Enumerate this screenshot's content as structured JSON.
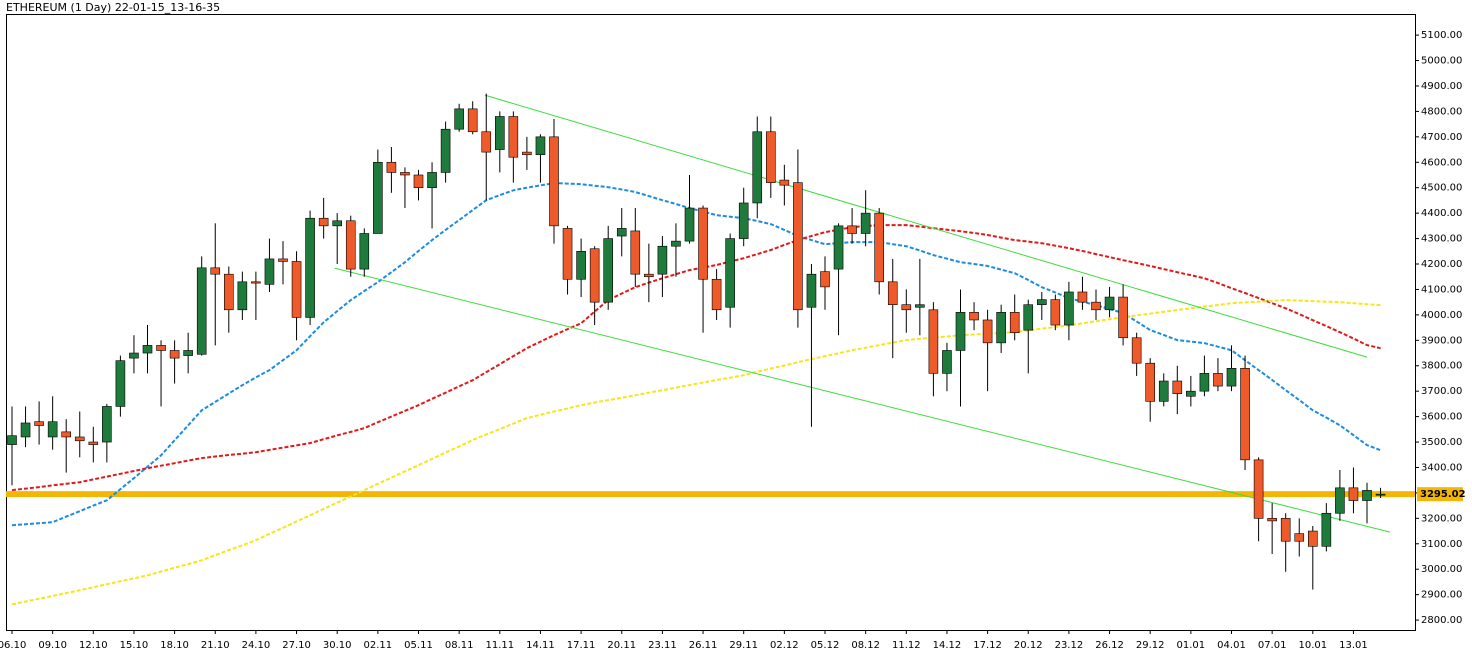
{
  "chart_data": {
    "type": "candlestick",
    "title": "ETHEREUM (1 Day) 22-01-15_13-16-35",
    "categories": [
      "06.10",
      null,
      null,
      "09.10",
      null,
      null,
      "12.10",
      null,
      null,
      "15.10",
      null,
      null,
      "18.10",
      null,
      null,
      "21.10",
      null,
      null,
      "24.10",
      null,
      null,
      "27.10",
      null,
      null,
      "30.10",
      null,
      null,
      "02.11",
      null,
      null,
      "05.11",
      null,
      null,
      "08.11",
      null,
      null,
      "11.11",
      null,
      null,
      "14.11",
      null,
      null,
      "17.11",
      null,
      null,
      "20.11",
      null,
      null,
      "23.11",
      null,
      null,
      "26.11",
      null,
      null,
      "29.11",
      null,
      null,
      "02.12",
      null,
      null,
      "05.12",
      null,
      null,
      "08.12",
      null,
      null,
      "11.12",
      null,
      null,
      "14.12",
      null,
      null,
      "17.12",
      null,
      null,
      "20.12",
      null,
      null,
      "23.12",
      null,
      null,
      "26.12",
      null,
      null,
      "29.12",
      null,
      null,
      "01.01",
      null,
      null,
      "04.01",
      null,
      null,
      "07.01",
      null,
      null,
      "10.01",
      null,
      null,
      "13.01",
      null,
      null
    ],
    "open": [
      3490,
      3520,
      3580,
      3520,
      3540,
      3520,
      3500,
      3500,
      3640,
      3830,
      3850,
      3880,
      3860,
      3840,
      3845,
      4185,
      4160,
      4020,
      4130,
      4120,
      4220,
      4210,
      3990,
      4380,
      4350,
      4370,
      4180,
      4320,
      4600,
      4560,
      4550,
      4500,
      4560,
      4730,
      4810,
      4720,
      4650,
      4780,
      4640,
      4630,
      4700,
      4340,
      4140,
      4260,
      4050,
      4310,
      4330,
      4160,
      4160,
      4270,
      4290,
      4420,
      4140,
      4030,
      4300,
      4440,
      4720,
      4530,
      4520,
      4030,
      4170,
      4180,
      4350,
      4320,
      4400,
      4130,
      4040,
      4030,
      4020,
      3770,
      3860,
      4010,
      3980,
      3890,
      4010,
      3940,
      4040,
      4060,
      3960,
      4090,
      4050,
      4020,
      4070,
      3910,
      3810,
      3660,
      3740,
      3680,
      3700,
      3770,
      3720,
      3790,
      3430,
      3200,
      3200,
      3140,
      3150,
      3090,
      3220,
      3320,
      3270,
      3295
    ],
    "high": [
      3640,
      3640,
      3660,
      3680,
      3590,
      3620,
      3560,
      3650,
      3840,
      3920,
      3960,
      3900,
      3900,
      3930,
      4230,
      4360,
      4190,
      4170,
      4170,
      4300,
      4290,
      4250,
      4410,
      4460,
      4400,
      4390,
      4340,
      4650,
      4660,
      4580,
      4570,
      4600,
      4760,
      4830,
      4840,
      4870,
      4800,
      4800,
      4700,
      4710,
      4770,
      4350,
      4300,
      4270,
      4350,
      4420,
      4420,
      4280,
      4310,
      4360,
      4550,
      4430,
      4180,
      4320,
      4500,
      4780,
      4780,
      4590,
      4650,
      4200,
      4230,
      4360,
      4420,
      4490,
      4420,
      4220,
      4100,
      4220,
      4050,
      3890,
      4100,
      4050,
      4020,
      4040,
      4080,
      4060,
      4090,
      4080,
      4130,
      4150,
      4100,
      4110,
      4120,
      3930,
      3830,
      3770,
      3800,
      3760,
      3840,
      3830,
      3880,
      3840,
      3440,
      3260,
      3220,
      3200,
      3170,
      3260,
      3390,
      3400,
      3340,
      3320
    ],
    "low": [
      3330,
      3480,
      3490,
      3470,
      3380,
      3440,
      3420,
      3420,
      3600,
      3770,
      3770,
      3640,
      3730,
      3770,
      3840,
      3880,
      3930,
      3980,
      3980,
      4090,
      4120,
      3900,
      3960,
      4300,
      4200,
      4150,
      4150,
      4320,
      4480,
      4420,
      4450,
      4340,
      4520,
      4720,
      4710,
      4450,
      4560,
      4520,
      4570,
      4520,
      4280,
      4080,
      4070,
      3960,
      4020,
      4230,
      4110,
      4050,
      4070,
      4150,
      4280,
      3930,
      3980,
      3950,
      4270,
      4380,
      4460,
      4430,
      3950,
      3560,
      4020,
      3920,
      4280,
      4270,
      4080,
      3830,
      3930,
      3920,
      3680,
      3700,
      3640,
      3940,
      3700,
      3850,
      3900,
      3770,
      3980,
      3940,
      3900,
      4020,
      3980,
      3990,
      3880,
      3760,
      3580,
      3640,
      3610,
      3640,
      3680,
      3700,
      3700,
      3390,
      3110,
      3060,
      2990,
      3050,
      2920,
      3070,
      3190,
      3220,
      3180,
      3280
    ],
    "close": [
      3525,
      3575,
      3565,
      3580,
      3520,
      3505,
      3490,
      3640,
      3820,
      3850,
      3880,
      3860,
      3830,
      3860,
      4185,
      4160,
      4020,
      4130,
      4125,
      4220,
      4210,
      3990,
      4380,
      4350,
      4370,
      4180,
      4320,
      4600,
      4560,
      4550,
      4500,
      4560,
      4730,
      4810,
      4720,
      4640,
      4780,
      4620,
      4630,
      4700,
      4350,
      4140,
      4250,
      4050,
      4300,
      4340,
      4160,
      4150,
      4270,
      4290,
      4420,
      4140,
      4020,
      4300,
      4440,
      4720,
      4520,
      4510,
      4020,
      4160,
      4110,
      4350,
      4320,
      4400,
      4130,
      4040,
      4020,
      4040,
      3770,
      3860,
      4010,
      3980,
      3890,
      4010,
      3930,
      4040,
      4060,
      3960,
      4090,
      4050,
      4020,
      4070,
      3910,
      3810,
      3660,
      3740,
      3690,
      3700,
      3770,
      3720,
      3790,
      3430,
      3200,
      3190,
      3110,
      3110,
      3090,
      3220,
      3320,
      3270,
      3310,
      3295.02
    ],
    "up_color": "#1e7b3c",
    "down_color": "#ee5a2a",
    "lines": [
      {
        "color": "#1e8be0",
        "values": [
          3173,
          3177,
          3181,
          3185,
          3207,
          3228,
          3250,
          3271,
          3315,
          3358,
          3403,
          3448,
          3507,
          3566,
          3625,
          3658,
          3691,
          3724,
          3754,
          3783,
          3822,
          3861,
          3916,
          3971,
          4015,
          4058,
          4094,
          4129,
          4168,
          4207,
          4251,
          4294,
          4334,
          4373,
          4412,
          4451,
          4471,
          4490,
          4500,
          4509,
          4518,
          4516,
          4514,
          4508,
          4502,
          4493,
          4483,
          4467,
          4451,
          4436,
          4420,
          4406,
          4392,
          4386,
          4380,
          4369,
          4357,
          4334,
          4310,
          4294,
          4278,
          4282,
          4286,
          4286,
          4286,
          4278,
          4270,
          4253,
          4235,
          4221,
          4207,
          4200,
          4192,
          4178,
          4164,
          4137,
          4109,
          4088,
          4066,
          4052,
          4038,
          4023,
          4007,
          3974,
          3940,
          3921,
          3901,
          3895,
          3889,
          3875,
          3861,
          3822,
          3783,
          3744,
          3704,
          3665,
          3625,
          3596,
          3566,
          3527,
          3488,
          3468
        ]
      },
      {
        "color": "#e01a1a",
        "values": [
          3311,
          3317,
          3323,
          3330,
          3336,
          3342,
          3353,
          3364,
          3375,
          3386,
          3397,
          3407,
          3417,
          3427,
          3437,
          3443,
          3449,
          3454,
          3460,
          3469,
          3478,
          3487,
          3496,
          3511,
          3526,
          3540,
          3555,
          3578,
          3600,
          3623,
          3645,
          3670,
          3694,
          3719,
          3743,
          3775,
          3806,
          3838,
          3869,
          3895,
          3920,
          3944,
          3967,
          4013,
          4058,
          4084,
          4109,
          4127,
          4144,
          4160,
          4176,
          4186,
          4196,
          4210,
          4223,
          4239,
          4255,
          4275,
          4294,
          4310,
          4325,
          4335,
          4345,
          4349,
          4353,
          4353,
          4353,
          4347,
          4341,
          4335,
          4329,
          4322,
          4314,
          4304,
          4294,
          4288,
          4282,
          4272,
          4262,
          4251,
          4239,
          4227,
          4215,
          4204,
          4192,
          4180,
          4168,
          4156,
          4144,
          4125,
          4105,
          4086,
          4066,
          4046,
          4026,
          4003,
          3979,
          3956,
          3932,
          3907,
          3881,
          3869
        ]
      },
      {
        "color": "#f5e61c",
        "values": [
          2862,
          2873,
          2884,
          2895,
          2906,
          2917,
          2929,
          2941,
          2953,
          2964,
          2976,
          2991,
          3006,
          3020,
          3035,
          3055,
          3075,
          3094,
          3114,
          3139,
          3163,
          3188,
          3212,
          3237,
          3262,
          3286,
          3311,
          3336,
          3360,
          3385,
          3409,
          3434,
          3459,
          3483,
          3508,
          3530,
          3551,
          3573,
          3594,
          3607,
          3620,
          3632,
          3645,
          3655,
          3665,
          3674,
          3684,
          3694,
          3704,
          3714,
          3724,
          3734,
          3744,
          3753,
          3763,
          3776,
          3789,
          3801,
          3814,
          3826,
          3838,
          3849,
          3861,
          3871,
          3881,
          3891,
          3901,
          3906,
          3911,
          3915,
          3920,
          3923,
          3926,
          3929,
          3932,
          3939,
          3946,
          3952,
          3959,
          3967,
          3975,
          3983,
          3991,
          3998,
          4005,
          4012,
          4019,
          4026,
          4033,
          4039,
          4046,
          4049,
          4052,
          4055,
          4058,
          4056,
          4054,
          4052,
          4050,
          4046,
          4042,
          4038
        ]
      }
    ],
    "trendlines": [
      {
        "color": "#3ddc3d",
        "x": [
          34.9,
          100
        ],
        "y": [
          4864,
          3834
        ]
      },
      {
        "color": "#3ddc3d",
        "x": [
          23.8,
          101.7
        ],
        "y": [
          4184,
          3146
        ]
      }
    ],
    "price_line": {
      "value": 3295.02,
      "label": "3295.02",
      "color": "#f2b705"
    },
    "ylim": [
      2761,
      5183
    ],
    "yticks": [
      {
        "value": 2800,
        "label": "2800.00"
      },
      {
        "value": 2900,
        "label": "2900.00"
      },
      {
        "value": 3000,
        "label": "3000.00"
      },
      {
        "value": 3100,
        "label": "3100.00"
      },
      {
        "value": 3200,
        "label": "3200.00"
      },
      {
        "value": 3300,
        "label": "3300.00"
      },
      {
        "value": 3400,
        "label": "3400.00"
      },
      {
        "value": 3500,
        "label": "3500.00"
      },
      {
        "value": 3600,
        "label": "3600.00"
      },
      {
        "value": 3700,
        "label": "3700.00"
      },
      {
        "value": 3800,
        "label": "3800.00"
      },
      {
        "value": 3900,
        "label": "3900.00"
      },
      {
        "value": 4000,
        "label": "4000.00"
      },
      {
        "value": 4100,
        "label": "4100.00"
      },
      {
        "value": 4200,
        "label": "4200.00"
      },
      {
        "value": 4300,
        "label": "4300.00"
      },
      {
        "value": 4400,
        "label": "4400.00"
      },
      {
        "value": 4500,
        "label": "4500.00"
      },
      {
        "value": 4600,
        "label": "4600.00"
      },
      {
        "value": 4700,
        "label": "4700.00"
      },
      {
        "value": 4800,
        "label": "4800.00"
      },
      {
        "value": 4900,
        "label": "4900.00"
      },
      {
        "value": 5000,
        "label": "5000.00"
      },
      {
        "value": 5100,
        "label": "5100.00"
      }
    ]
  }
}
